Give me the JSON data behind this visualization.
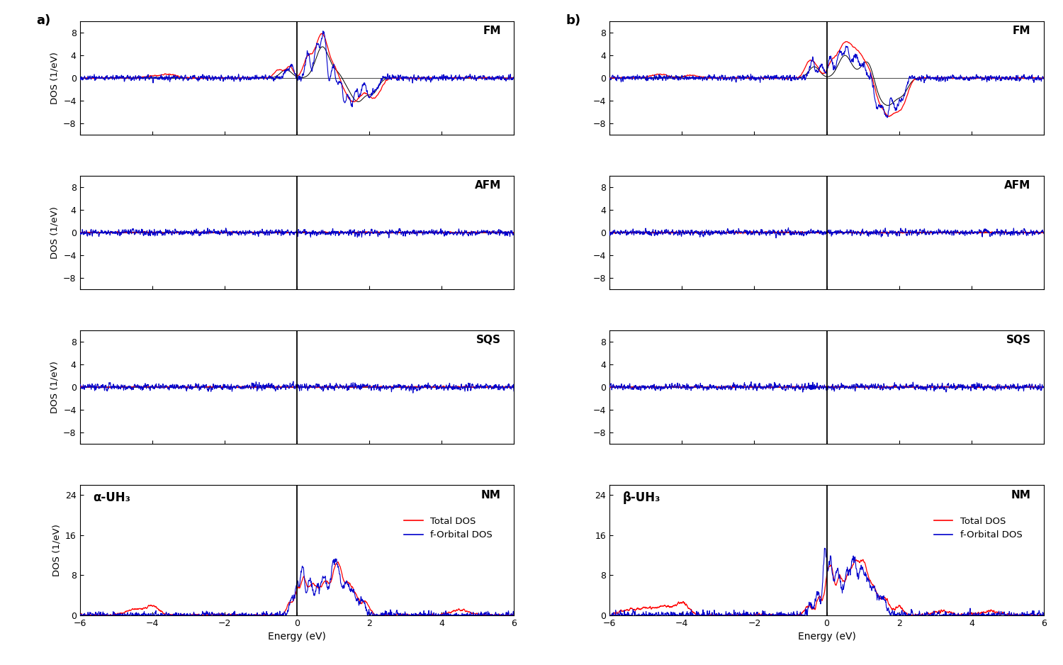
{
  "panel_labels": [
    "a)",
    "b)"
  ],
  "struct_labels": [
    "α-UH₃",
    "β-UH₃"
  ],
  "row_labels": [
    "FM",
    "AFM",
    "SQS",
    "NM"
  ],
  "xlim": [
    -6,
    6
  ],
  "ylim_magnetic": [
    -10,
    10
  ],
  "ylim_nm": [
    0,
    26
  ],
  "yticks_magnetic": [
    -8,
    -4,
    0,
    4,
    8
  ],
  "yticks_nm": [
    0,
    8,
    16,
    24
  ],
  "xlabel": "Energy (eV)",
  "ylabel": "DOS (1/eV)",
  "color_total": "#ff0000",
  "color_forbital": "#0000cc",
  "color_envelope": "#000000",
  "legend_labels": [
    "Total DOS",
    "f-Orbital DOS"
  ],
  "background": "#ffffff"
}
